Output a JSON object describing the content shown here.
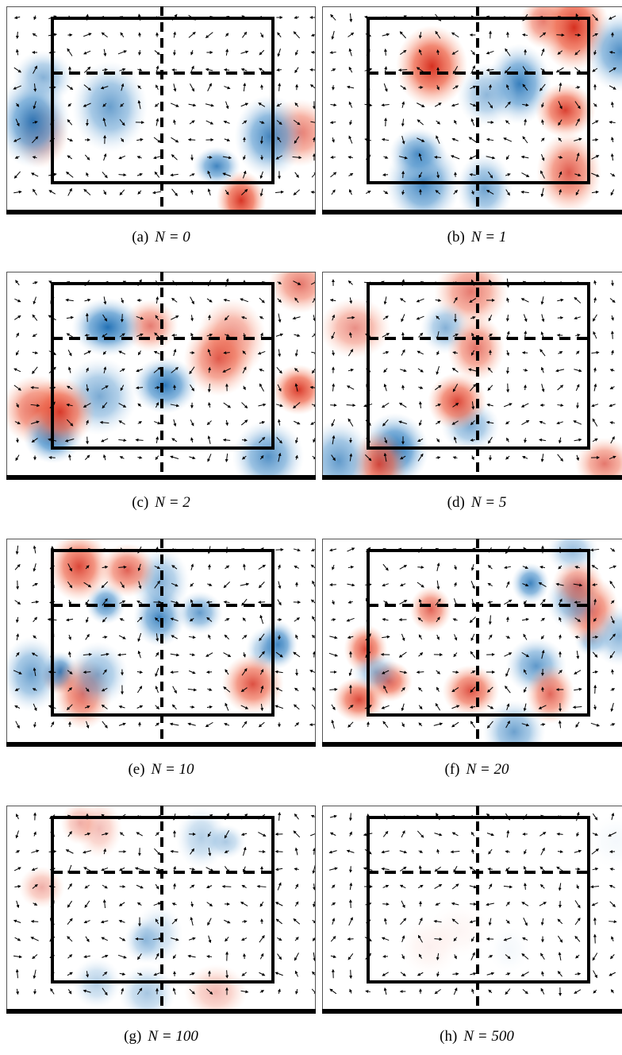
{
  "panels": [
    {
      "label": "(a)",
      "equation": "N = 0"
    },
    {
      "label": "(b)",
      "equation": "N = 1"
    },
    {
      "label": "(c)",
      "equation": "N = 2"
    },
    {
      "label": "(d)",
      "equation": "N = 5"
    },
    {
      "label": "(e)",
      "equation": "N = 10"
    },
    {
      "label": "(f)",
      "equation": "N = 20"
    },
    {
      "label": "(g)",
      "equation": "N = 100"
    },
    {
      "label": "(h)",
      "equation": "N = 500"
    }
  ]
}
